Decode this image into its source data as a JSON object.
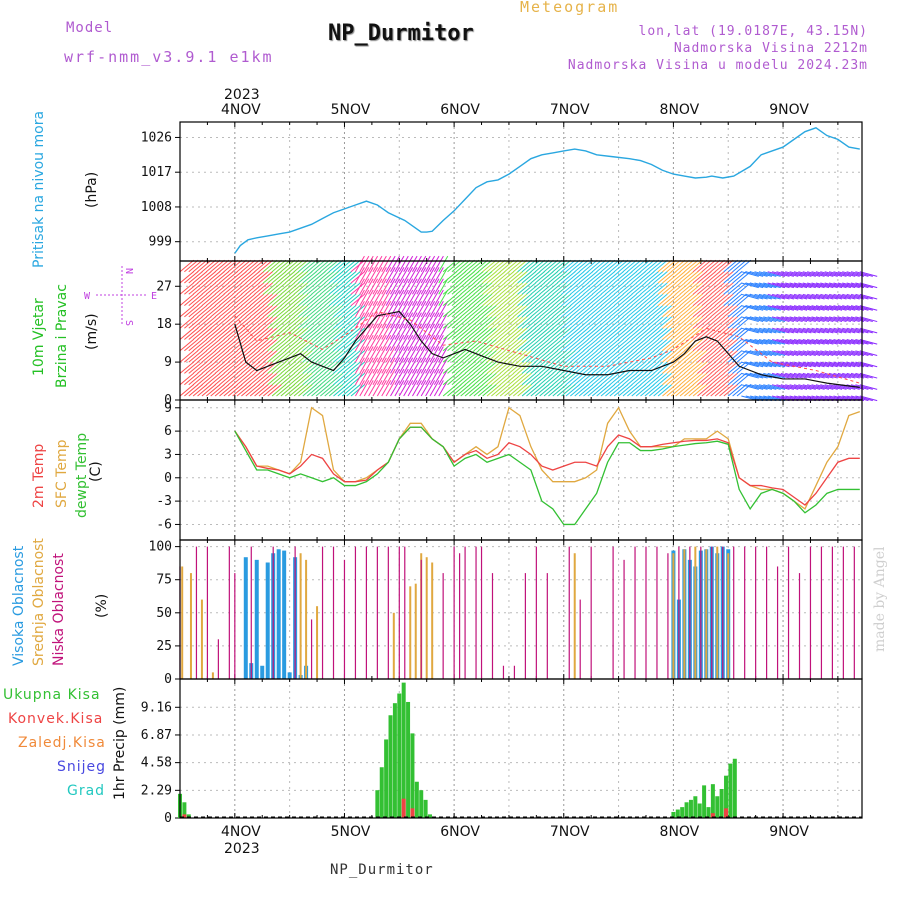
{
  "header": {
    "model_label": "Model",
    "model_name": "wrf-nmm_v3.9.1 e1km",
    "station": "NP_Durmitor",
    "product": "Meteogram",
    "lonlat": "lon,lat (19.0187E, 43.15N)",
    "altitude": "Nadmorska Visina 2212m",
    "model_altitude": "Nadmorska Visina u modelu 2024.23m"
  },
  "footer": {
    "station": "NP_Durmitor",
    "credit": "made by Angel"
  },
  "colors": {
    "pressure": "#2aa7e0",
    "temp2m": "#ee4444",
    "sfc": "#e0a840",
    "dewpt": "#33c033",
    "high_cloud": "#2a9be0",
    "mid_cloud": "#e0a840",
    "low_cloud": "#c0127a"
  },
  "chart_data": [
    {
      "type": "line",
      "title": "",
      "ylabel": "Pritisak na nivou mora",
      "unit": "(hPa)",
      "x_days": [
        "4NOV",
        "5NOV",
        "6NOV",
        "7NOV",
        "8NOV",
        "9NOV"
      ],
      "x_year": "2023",
      "ylim": [
        994,
        1030
      ],
      "yticks": [
        "999",
        "1008",
        "1017",
        "1026"
      ],
      "grid": true,
      "series": [
        {
          "x": [
            0,
            0.05,
            0.12,
            0.2,
            0.3,
            0.4,
            0.5,
            0.6,
            0.7,
            0.8,
            0.9,
            1.0,
            1.1,
            1.2,
            1.3,
            1.4,
            1.55,
            1.65,
            1.7,
            1.75,
            1.8,
            1.9,
            2.0,
            2.1,
            2.2,
            2.3,
            2.4,
            2.5,
            2.6,
            2.7,
            2.8,
            2.9,
            3.0,
            3.1,
            3.2,
            3.3,
            3.45,
            3.6,
            3.7,
            3.8,
            3.9,
            4.0,
            4.1,
            4.2,
            4.3,
            4.35,
            4.45,
            4.55,
            4.7,
            4.8,
            4.9,
            5.0,
            5.1,
            5.2,
            5.3,
            5.4,
            5.5,
            5.6,
            5.7
          ],
          "values": [
            996,
            998,
            999.5,
            1000,
            1000.5,
            1001,
            1001.5,
            1002.5,
            1003.5,
            1005,
            1006.5,
            1007.5,
            1008.5,
            1009.5,
            1008.5,
            1006.5,
            1004.5,
            1002.5,
            1001.5,
            1001.5,
            1001.7,
            1004.5,
            1007,
            1010,
            1013,
            1014.5,
            1015,
            1016.5,
            1018.5,
            1020.5,
            1021.5,
            1022,
            1022.5,
            1023,
            1022.5,
            1021.5,
            1021,
            1020.5,
            1020,
            1019,
            1017.5,
            1016.5,
            1016,
            1015.5,
            1015.7,
            1016,
            1015.5,
            1016,
            1018.5,
            1021.5,
            1022.5,
            1023.5,
            1025.5,
            1027.5,
            1028.5,
            1026.5,
            1025.5,
            1023.5,
            1023
          ]
        }
      ]
    },
    {
      "type": "line",
      "title": "",
      "ylabel": "10m Vjetar Brzina i Pravac",
      "unit": "(m/s)",
      "compass": [
        "N",
        "E",
        "W",
        "S"
      ],
      "ylim": [
        0,
        33
      ],
      "yticks": [
        "0",
        "9",
        "18",
        "27"
      ],
      "grid": true,
      "series": [
        {
          "name": "wind speed",
          "x": [
            0,
            0.1,
            0.2,
            0.3,
            0.4,
            0.5,
            0.6,
            0.7,
            0.8,
            0.9,
            1.0,
            1.1,
            1.2,
            1.3,
            1.5,
            1.6,
            1.7,
            1.8,
            1.9,
            2.0,
            2.1,
            2.2,
            2.3,
            2.4,
            2.6,
            2.8,
            3.0,
            3.2,
            3.4,
            3.6,
            3.8,
            4.0,
            4.1,
            4.2,
            4.3,
            4.4,
            4.5,
            4.6,
            4.8,
            5.0,
            5.2,
            5.4,
            5.7
          ],
          "values": [
            18,
            9,
            7,
            8,
            9,
            10,
            11,
            9,
            8,
            7,
            10,
            14,
            17,
            20,
            21,
            18,
            14,
            11,
            10,
            11,
            12,
            11,
            10,
            9,
            8,
            8,
            7,
            6,
            6,
            7,
            7,
            9,
            11,
            14,
            15,
            14,
            11,
            8,
            6,
            5,
            5,
            4,
            3
          ]
        },
        {
          "name": "gust",
          "x": [
            0,
            0.2,
            0.5,
            0.8,
            1.1,
            1.3,
            1.6,
            1.9,
            2.2,
            2.6,
            3.0,
            3.4,
            3.8,
            4.0,
            4.3,
            4.6,
            4.9,
            5.3,
            5.7
          ],
          "values": [
            20,
            14,
            16,
            12,
            17,
            21,
            19,
            13,
            14,
            11,
            8,
            8,
            10,
            12,
            17,
            15,
            9,
            7,
            4
          ]
        }
      ]
    },
    {
      "type": "line",
      "title": "",
      "ylabel": "2m Temp / SFC Temp / dewpt Temp",
      "legend": [
        "2m Temp",
        "SFC Temp",
        "dewpt Temp"
      ],
      "unit": "(C)",
      "ylim": [
        -8,
        10
      ],
      "yticks": [
        "-6",
        "-3",
        "0",
        "3",
        "6",
        "9"
      ],
      "grid": true,
      "series": [
        {
          "name": "SFC Temp",
          "x": [
            0,
            0.1,
            0.2,
            0.3,
            0.4,
            0.5,
            0.6,
            0.7,
            0.8,
            0.9,
            1.0,
            1.1,
            1.2,
            1.3,
            1.4,
            1.5,
            1.6,
            1.7,
            1.8,
            1.9,
            2.0,
            2.1,
            2.2,
            2.3,
            2.4,
            2.5,
            2.6,
            2.7,
            2.8,
            2.9,
            3.0,
            3.1,
            3.2,
            3.3,
            3.4,
            3.5,
            3.6,
            3.7,
            3.8,
            3.9,
            4.0,
            4.1,
            4.2,
            4.3,
            4.4,
            4.5,
            4.6,
            4.7,
            4.8,
            4.9,
            5.0,
            5.1,
            5.2,
            5.3,
            5.4,
            5.5,
            5.6,
            5.7
          ],
          "values": [
            6,
            4,
            1.5,
            1.5,
            1,
            0.5,
            2,
            9,
            8,
            1,
            -0.5,
            -0.5,
            0,
            1,
            2,
            5,
            7,
            7,
            5,
            4,
            2,
            3,
            4,
            3,
            4,
            9,
            8,
            4,
            1,
            -0.5,
            -0.5,
            -0.5,
            0,
            1,
            7,
            9,
            6,
            4,
            4,
            4,
            4,
            5,
            5,
            5,
            6,
            5,
            0,
            -1,
            -1.5,
            -1.5,
            -2,
            -3,
            -4,
            -1,
            2,
            4,
            8,
            8.5
          ]
        },
        {
          "name": "2m Temp",
          "x": [
            0,
            0.1,
            0.2,
            0.3,
            0.4,
            0.5,
            0.6,
            0.7,
            0.8,
            0.9,
            1.0,
            1.1,
            1.2,
            1.3,
            1.4,
            1.5,
            1.6,
            1.7,
            1.8,
            1.9,
            2.0,
            2.1,
            2.2,
            2.3,
            2.4,
            2.5,
            2.6,
            2.7,
            2.8,
            2.9,
            3.0,
            3.1,
            3.2,
            3.3,
            3.4,
            3.5,
            3.6,
            3.7,
            3.8,
            3.9,
            4.0,
            4.1,
            4.2,
            4.3,
            4.4,
            4.5,
            4.6,
            4.7,
            4.8,
            4.9,
            5.0,
            5.1,
            5.2,
            5.3,
            5.4,
            5.5,
            5.6,
            5.7
          ],
          "values": [
            6,
            4,
            1.5,
            1.2,
            1,
            0.5,
            1.5,
            3,
            2.5,
            0.5,
            -0.5,
            -0.5,
            -0.3,
            1,
            2,
            5,
            6.5,
            6.5,
            5,
            4,
            2,
            3,
            3.5,
            2.5,
            3,
            4.5,
            4,
            3,
            1.5,
            1,
            1.5,
            2,
            2,
            1.5,
            4,
            5.5,
            5,
            4,
            4,
            4.3,
            4.5,
            4.7,
            4.8,
            4.8,
            5,
            4.5,
            0,
            -1,
            -1,
            -1.3,
            -1.5,
            -2.5,
            -3.5,
            -2,
            0,
            2,
            2.5,
            2.5
          ]
        },
        {
          "name": "dewpt Temp",
          "x": [
            0,
            0.1,
            0.2,
            0.3,
            0.4,
            0.5,
            0.6,
            0.7,
            0.8,
            0.9,
            1.0,
            1.1,
            1.2,
            1.3,
            1.4,
            1.5,
            1.6,
            1.7,
            1.8,
            1.9,
            2.0,
            2.1,
            2.2,
            2.3,
            2.4,
            2.5,
            2.6,
            2.7,
            2.8,
            2.9,
            3.0,
            3.1,
            3.2,
            3.3,
            3.4,
            3.5,
            3.6,
            3.7,
            3.8,
            3.9,
            4.0,
            4.1,
            4.2,
            4.3,
            4.4,
            4.5,
            4.6,
            4.7,
            4.8,
            4.9,
            5.0,
            5.1,
            5.2,
            5.3,
            5.4,
            5.5,
            5.6,
            5.7
          ],
          "values": [
            6,
            3.5,
            1,
            1,
            0.5,
            0,
            0.5,
            0,
            -0.5,
            0,
            -1,
            -1,
            -0.5,
            0.5,
            2,
            5,
            6.5,
            6.5,
            5,
            4,
            1.5,
            2.5,
            3,
            2,
            2.5,
            3,
            2,
            1,
            -3,
            -4,
            -6,
            -6,
            -4,
            -2,
            2,
            4.5,
            4.5,
            3.5,
            3.5,
            3.7,
            4,
            4.2,
            4.4,
            4.5,
            4.7,
            4.3,
            -1.5,
            -4,
            -2,
            -1.5,
            -2,
            -3,
            -4.5,
            -3.5,
            -2,
            -1.5,
            -1.5,
            -1.5
          ]
        }
      ]
    },
    {
      "type": "bar",
      "title": "",
      "ylabel": "Visoka Oblacnost / Srednja Oblacnost / Niska Oblacnost",
      "legend": [
        "Visoka Oblacnost",
        "Srednja Oblacnost",
        "Niska Oblacnost"
      ],
      "unit": "(%)",
      "ylim": [
        0,
        105
      ],
      "yticks": [
        "0",
        "25",
        "50",
        "75",
        "100"
      ],
      "grid": true,
      "series": [
        {
          "name": "Visoka Oblacnost",
          "x": [
            0.1,
            0.15,
            0.2,
            0.25,
            0.3,
            0.35,
            0.4,
            0.45,
            0.5,
            0.55,
            0.6,
            0.65,
            4.0,
            4.05,
            4.1,
            4.15,
            4.2,
            4.25,
            4.3,
            4.35,
            4.4,
            4.45,
            4.5
          ],
          "values": [
            92,
            12,
            90,
            10,
            88,
            95,
            98,
            97,
            5,
            92,
            3,
            10,
            97,
            60,
            98,
            90,
            85,
            97,
            98,
            100,
            95,
            100,
            98
          ]
        },
        {
          "name": "Srednja Oblacnost",
          "x": [
            -0.48,
            -0.4,
            -0.3,
            -0.2,
            0.6,
            0.65,
            0.75,
            1.45,
            1.6,
            1.65,
            1.7,
            1.75,
            1.8,
            3.1,
            4.0,
            4.1,
            4.2,
            4.3,
            4.4,
            4.5
          ],
          "values": [
            85,
            80,
            60,
            5,
            95,
            90,
            55,
            50,
            70,
            72,
            95,
            92,
            88,
            95,
            95,
            98,
            100,
            98,
            100,
            95
          ]
        },
        {
          "name": "Niska Oblacnost",
          "x": [
            -0.5,
            -0.35,
            -0.25,
            -0.15,
            -0.05,
            0.0,
            0.15,
            0.35,
            0.55,
            0.7,
            0.8,
            0.9,
            1.0,
            1.1,
            1.2,
            1.3,
            1.4,
            1.5,
            1.55,
            1.7,
            1.9,
            2.0,
            2.05,
            2.1,
            2.2,
            2.25,
            2.35,
            2.45,
            2.55,
            2.65,
            2.75,
            2.85,
            3.05,
            3.15,
            3.25,
            3.45,
            3.55,
            3.65,
            3.75,
            3.85,
            3.95,
            4.05,
            4.15,
            4.25,
            4.35,
            4.45,
            4.55,
            4.65,
            4.75,
            4.85,
            4.95,
            5.05,
            5.15,
            5.25,
            5.35,
            5.45,
            5.55,
            5.65
          ],
          "values": [
            85,
            100,
            100,
            30,
            100,
            80,
            100,
            100,
            100,
            45,
            100,
            100,
            90,
            100,
            100,
            100,
            100,
            100,
            100,
            90,
            80,
            100,
            95,
            100,
            100,
            100,
            80,
            10,
            10,
            80,
            100,
            80,
            100,
            60,
            100,
            100,
            90,
            100,
            100,
            100,
            95,
            100,
            100,
            100,
            100,
            100,
            100,
            100,
            100,
            100,
            85,
            100,
            80,
            100,
            100,
            100,
            100,
            100
          ]
        }
      ]
    },
    {
      "type": "bar",
      "title": "",
      "ylabel": "1hr Precip (mm)",
      "legend": [
        "Ukupna Kisa",
        "Konvek.Kisa",
        "Zaledj.Kisa",
        "Snijeg",
        "Grad"
      ],
      "unit": "(mm)",
      "ylim": [
        0,
        11.5
      ],
      "yticks": [
        "0",
        "2.29",
        "4.58",
        "6.87",
        "9.16"
      ],
      "grid": true,
      "x_bottom_days": [
        "4NOV",
        "5NOV",
        "6NOV",
        "7NOV",
        "8NOV",
        "9NOV"
      ],
      "x_bottom_year": "2023",
      "series": [
        {
          "name": "Ukupna Kisa",
          "x": [
            -0.5,
            -0.46,
            -0.42,
            1.3,
            1.34,
            1.38,
            1.42,
            1.46,
            1.5,
            1.54,
            1.58,
            1.62,
            1.66,
            1.7,
            1.74,
            1.78,
            4.0,
            4.04,
            4.08,
            4.12,
            4.16,
            4.2,
            4.24,
            4.28,
            4.32,
            4.36,
            4.4,
            4.44,
            4.48,
            4.52,
            4.56
          ],
          "values": [
            2,
            1.3,
            0.3,
            2.3,
            4.2,
            6.5,
            8.5,
            9.5,
            10.3,
            11.2,
            9.6,
            7,
            3,
            2.3,
            1.5,
            0.3,
            0.5,
            0.7,
            0.9,
            1.3,
            1.5,
            1.8,
            1.2,
            2.7,
            0.9,
            2.8,
            1.8,
            2.4,
            3.5,
            4.5,
            4.9
          ]
        },
        {
          "name": "Konvek.Kisa",
          "x": [
            -0.46,
            1.54,
            1.62,
            4.36,
            4.48
          ],
          "values": [
            0.3,
            1.6,
            0.8,
            0.4,
            0.8
          ]
        }
      ]
    }
  ]
}
